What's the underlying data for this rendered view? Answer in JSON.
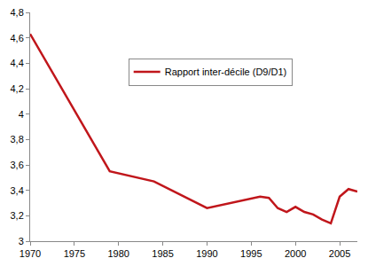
{
  "chart_data": {
    "type": "line",
    "x": [
      1970,
      1979,
      1984,
      1990,
      1996,
      1997,
      1998,
      1999,
      2000,
      2001,
      2002,
      2003,
      2004,
      2005,
      2006,
      2007
    ],
    "series": [
      {
        "name": "Rapport inter-décile (D9/D1)",
        "color": "#c0161b",
        "values": [
          4.63,
          3.55,
          3.47,
          3.26,
          3.35,
          3.34,
          3.26,
          3.23,
          3.27,
          3.23,
          3.21,
          3.17,
          3.14,
          3.35,
          3.41,
          3.39
        ]
      }
    ],
    "xlim": [
      1970,
      2007
    ],
    "xticks": [
      1970,
      1975,
      1980,
      1985,
      1990,
      1995,
      2000,
      2005
    ],
    "ylim": [
      3,
      4.8
    ],
    "yticks": [
      3,
      {
        "value": 3.2,
        "label": "3,2"
      },
      {
        "value": 3.4,
        "label": "3,4"
      },
      {
        "value": 3.6,
        "label": "3,6"
      },
      {
        "value": 3.8,
        "label": "3,8"
      },
      4,
      {
        "value": 4.2,
        "label": "4,2"
      },
      {
        "value": 4.4,
        "label": "4,4"
      },
      {
        "value": 4.6,
        "label": "4,6"
      },
      {
        "value": 4.8,
        "label": "4,8"
      }
    ],
    "grid": false,
    "legend": "upper left"
  }
}
